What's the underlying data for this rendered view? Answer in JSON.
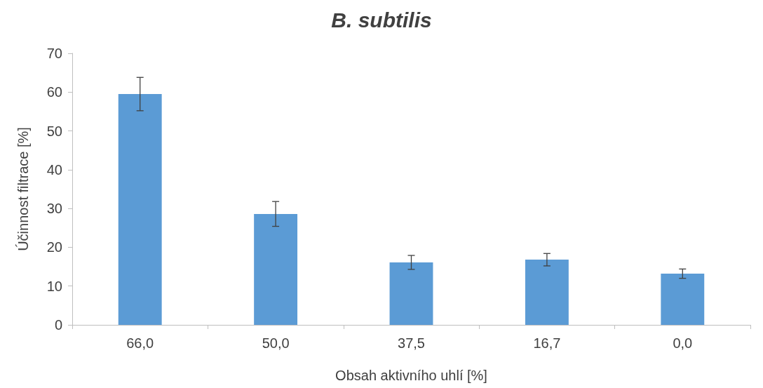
{
  "chart_data": {
    "type": "bar",
    "title": "B. subtilis",
    "xlabel": "Obsah aktivního uhlí [%]",
    "ylabel": "Účinnost filtrace [%]",
    "categories": [
      "66,0",
      "50,0",
      "37,5",
      "16,7",
      "0,0"
    ],
    "values": [
      59.5,
      28.6,
      16.1,
      16.8,
      13.2
    ],
    "errors": [
      4.3,
      3.2,
      1.8,
      1.6,
      1.2
    ],
    "color": "#5b9bd5",
    "ylim": [
      0,
      70
    ],
    "yticks": [
      0,
      10,
      20,
      30,
      40,
      50,
      60,
      70
    ],
    "grid": false
  }
}
